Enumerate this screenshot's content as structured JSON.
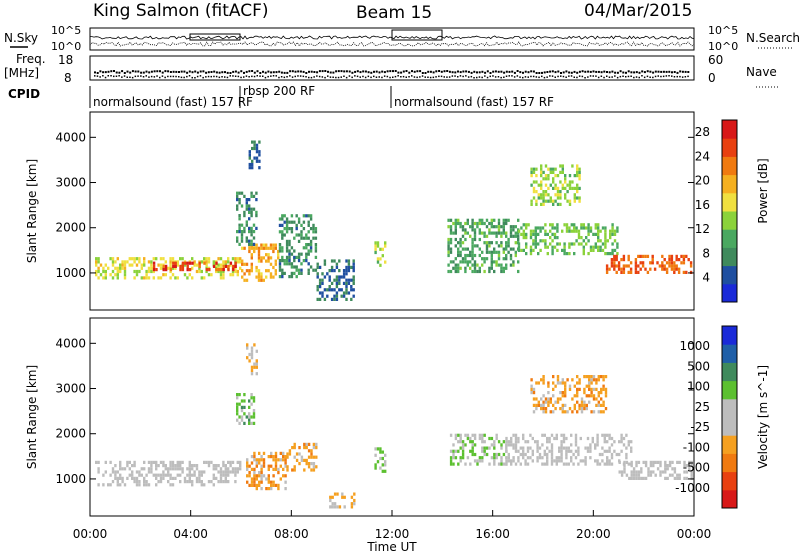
{
  "header": {
    "station": "King Salmon (fitACF)",
    "beam": "Beam 15",
    "date": "04/Mar/2015"
  },
  "noise_panel": {
    "left_label": "N.Sky",
    "right_label": "N.Search",
    "y_ticks_left": [
      "10^5",
      "10^0"
    ],
    "y_ticks_right": [
      "10^5",
      "10^0"
    ]
  },
  "freq_panel": {
    "left_label_1": "Freq.",
    "left_label_2": "[MHz]",
    "right_label": "Nave",
    "y_ticks_left": [
      "18",
      "8"
    ],
    "y_ticks_right": [
      "60",
      "0"
    ]
  },
  "cpid_panel": {
    "label": "CPID",
    "segments": [
      {
        "name": "normalsound (fast) 157 RF",
        "start_h": 0,
        "end_h": 12
      },
      {
        "name": "rbsp 200 RF",
        "start_h": 6,
        "end_h": 6.5
      },
      {
        "name": "normalsound (fast) 157 RF",
        "start_h": 12,
        "end_h": 24
      }
    ]
  },
  "x_axis": {
    "title": "Time UT",
    "ticks": [
      "00:00",
      "04:00",
      "08:00",
      "12:00",
      "16:00",
      "20:00",
      "00:00"
    ],
    "range_hours": [
      0,
      24
    ]
  },
  "colors": {
    "power": [
      "#1a2ad8",
      "#1f4fa0",
      "#3f8a5c",
      "#4aa860",
      "#8bd23a",
      "#f0e040",
      "#f5b020",
      "#f07a10",
      "#e84010",
      "#d81818"
    ],
    "velocity": [
      "#d81818",
      "#e84010",
      "#f07a10",
      "#f5a020",
      "#bdbdbd",
      "#bdbdbd",
      "#5cc030",
      "#3f8a5c",
      "#1f5fa8",
      "#1a2ad8"
    ]
  },
  "chart_data": [
    {
      "type": "heatmap",
      "title": "Power",
      "ylabel": "Slant Range [km]",
      "xlabel": "Time UT",
      "xlim": [
        0,
        24
      ],
      "ylim": [
        180,
        4560
      ],
      "y_ticks": [
        1000,
        2000,
        3000,
        4000
      ],
      "colorbar": {
        "label": "Power [dB]",
        "ticks": [
          "4",
          "8",
          "12",
          "16",
          "20",
          "24",
          "28"
        ],
        "range": [
          0,
          30
        ]
      },
      "regions": [
        {
          "t0": 0.2,
          "t1": 6.0,
          "r0": 900,
          "r1": 1350,
          "value": 16
        },
        {
          "t0": 2.5,
          "t1": 6.0,
          "r0": 1050,
          "r1": 1250,
          "value": 26
        },
        {
          "t0": 6.0,
          "t1": 7.5,
          "r0": 850,
          "r1": 1650,
          "value": 20
        },
        {
          "t0": 5.8,
          "t1": 6.6,
          "r0": 1600,
          "r1": 2800,
          "value": 8
        },
        {
          "t0": 6.3,
          "t1": 6.7,
          "r0": 3300,
          "r1": 4000,
          "value": 6
        },
        {
          "t0": 7.5,
          "t1": 9.0,
          "r0": 900,
          "r1": 2300,
          "value": 8
        },
        {
          "t0": 9.0,
          "t1": 10.5,
          "r0": 400,
          "r1": 1300,
          "value": 6
        },
        {
          "t0": 11.3,
          "t1": 11.7,
          "r0": 1200,
          "r1": 1700,
          "value": 14
        },
        {
          "t0": 14.2,
          "t1": 17.0,
          "r0": 1000,
          "r1": 2200,
          "value": 10
        },
        {
          "t0": 17.0,
          "t1": 21.0,
          "r0": 1400,
          "r1": 2100,
          "value": 12
        },
        {
          "t0": 17.5,
          "t1": 19.5,
          "r0": 2500,
          "r1": 3400,
          "value": 14
        },
        {
          "t0": 20.5,
          "t1": 23.9,
          "r0": 1000,
          "r1": 1400,
          "value": 24
        }
      ]
    },
    {
      "type": "heatmap",
      "title": "Velocity",
      "ylabel": "Slant Range [km]",
      "xlabel": "Time UT",
      "xlim": [
        0,
        24
      ],
      "ylim": [
        180,
        4560
      ],
      "y_ticks": [
        1000,
        2000,
        3000,
        4000
      ],
      "colorbar": {
        "label": "Velocity [m s^-1]",
        "ticks": [
          "1000",
          "500",
          "100",
          "25",
          "-25",
          "-100",
          "-500",
          "-1000"
        ],
        "range": [
          -1000,
          1000
        ]
      },
      "regions": [
        {
          "t0": 0.2,
          "t1": 6.0,
          "r0": 900,
          "r1": 1400,
          "value": 0
        },
        {
          "t0": 5.8,
          "t1": 6.5,
          "r0": 2200,
          "r1": 2900,
          "value": 300
        },
        {
          "t0": 6.2,
          "t1": 6.6,
          "r0": 3300,
          "r1": 4000,
          "value": -200
        },
        {
          "t0": 6.2,
          "t1": 7.8,
          "r0": 800,
          "r1": 1600,
          "value": -300
        },
        {
          "t0": 7.8,
          "t1": 9.0,
          "r0": 1200,
          "r1": 1800,
          "value": -250
        },
        {
          "t0": 9.5,
          "t1": 10.5,
          "r0": 400,
          "r1": 700,
          "value": -200
        },
        {
          "t0": 11.3,
          "t1": 11.7,
          "r0": 1200,
          "r1": 1700,
          "value": 200
        },
        {
          "t0": 14.3,
          "t1": 16.5,
          "r0": 1300,
          "r1": 2000,
          "value": 150
        },
        {
          "t0": 16.5,
          "t1": 21.5,
          "r0": 1300,
          "r1": 2000,
          "value": 0
        },
        {
          "t0": 17.5,
          "t1": 20.5,
          "r0": 2500,
          "r1": 3300,
          "value": -300
        },
        {
          "t0": 21.0,
          "t1": 23.9,
          "r0": 1000,
          "r1": 1400,
          "value": 0
        }
      ]
    }
  ]
}
